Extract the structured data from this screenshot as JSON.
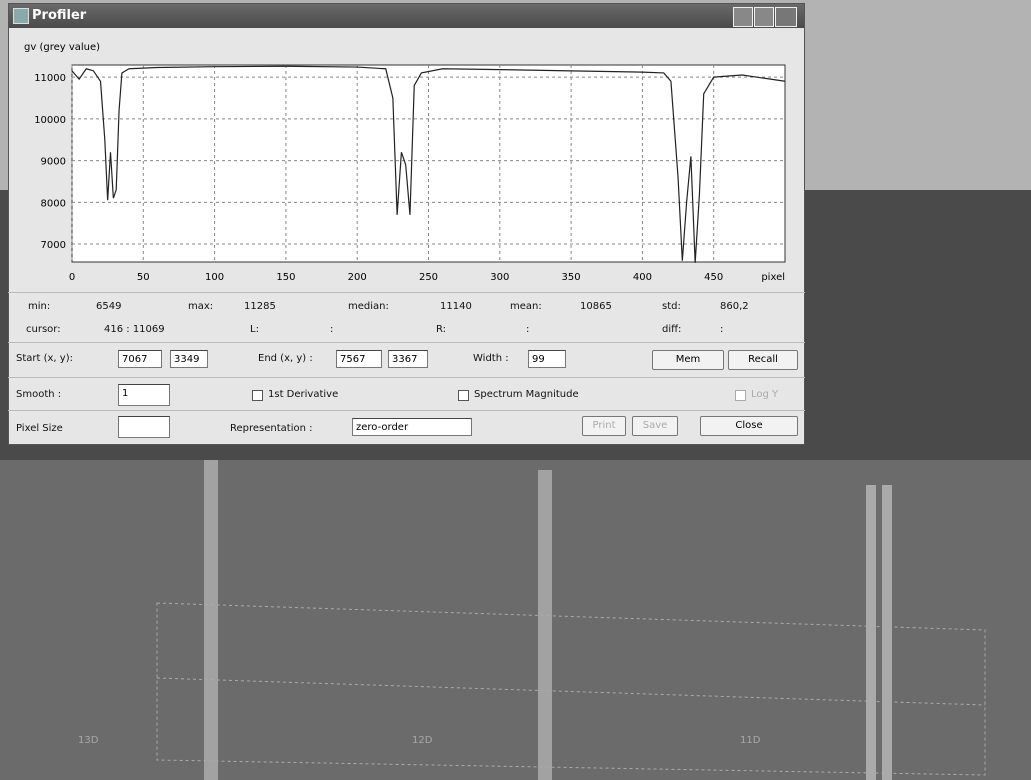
{
  "window": {
    "title": "Profiler"
  },
  "chart_data": {
    "type": "line",
    "title": "gv (grey value)",
    "x_label": "pixel",
    "color": "#222222",
    "x": [
      0,
      5,
      10,
      15,
      20,
      23,
      25,
      27,
      29,
      31,
      33,
      35,
      40,
      60,
      100,
      150,
      200,
      220,
      225,
      228,
      231,
      234,
      237,
      240,
      245,
      260,
      300,
      350,
      400,
      415,
      420,
      425,
      428,
      431,
      434,
      437,
      440,
      443,
      450,
      470,
      500
    ],
    "values": [
      11150,
      10950,
      11200,
      11150,
      10900,
      9500,
      8050,
      9200,
      8100,
      8300,
      10200,
      11100,
      11200,
      11230,
      11250,
      11260,
      11240,
      11200,
      10500,
      7700,
      9200,
      8900,
      7700,
      10800,
      11100,
      11200,
      11180,
      11150,
      11120,
      11100,
      10900,
      8600,
      6600,
      8000,
      9100,
      6550,
      8200,
      10600,
      11000,
      11050,
      10900
    ],
    "xlim": [
      0,
      500
    ],
    "ylim": [
      6570,
      11290
    ],
    "xticks": [
      0,
      50,
      100,
      150,
      200,
      250,
      300,
      350,
      400,
      450
    ],
    "yticks": [
      7000,
      8000,
      9000,
      10000,
      11000
    ],
    "grid": true
  },
  "stats": {
    "min_label": "min:",
    "min": "6549",
    "max_label": "max:",
    "max": "11285",
    "median_label": "median:",
    "median": "11140",
    "mean_label": "mean:",
    "mean": "10865",
    "std_label": "std:",
    "std": "860,2",
    "cursor_label": "cursor:",
    "cursor": "416 : 11069",
    "l_label": "L:",
    "l_sep": ":",
    "r_label": "R:",
    "r_sep": ":",
    "diff_label": "diff:",
    "diff_sep": ":"
  },
  "controls": {
    "start_label": "Start (x, y):",
    "start_x": "7067",
    "start_y": "3349",
    "end_label": "End (x, y) :",
    "end_x": "7567",
    "end_y": "3367",
    "width_label": "Width :",
    "width": "99",
    "mem": "Mem",
    "recall": "Recall",
    "smooth_label": "Smooth :",
    "smooth": "1",
    "derivative": "1st Derivative",
    "spectrum": "Spectrum Magnitude",
    "logy": "Log Y",
    "pixel_size_label": "Pixel Size",
    "representation_label": "Representation :",
    "representation": "zero-order",
    "print": "Print",
    "save": "Save",
    "close": "Close"
  },
  "scene": {
    "labels": [
      "13D",
      "12D",
      "11D"
    ]
  }
}
